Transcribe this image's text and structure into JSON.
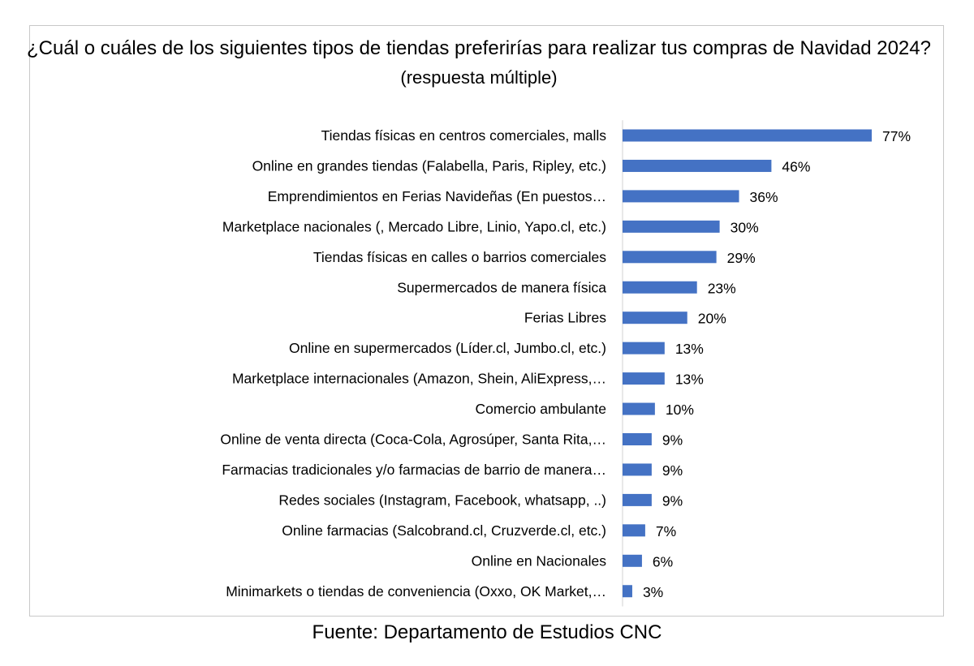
{
  "chart_data": {
    "type": "bar",
    "orientation": "horizontal",
    "title": "¿Cuál o cuáles de los siguientes tipos de tiendas preferirías para realizar tus compras de Navidad 2024?",
    "subtitle": "(respuesta múltiple)",
    "xlim": [
      0,
      100
    ],
    "grid": false,
    "bar_color": "#4472C4",
    "categories": [
      "Tiendas físicas en centros comerciales, malls",
      "Online en grandes tiendas (Falabella, Paris, Ripley, etc.)",
      "Emprendimientos en Ferias Navideñas (En puestos…",
      "Marketplace nacionales (, Mercado Libre, Linio, Yapo.cl, etc.)",
      "Tiendas físicas en calles o barrios comerciales",
      "Supermercados de manera física",
      "Ferias Libres",
      "Online en supermercados (Líder.cl, Jumbo.cl, etc.)",
      "Marketplace internacionales (Amazon, Shein, AliExpress,…",
      "Comercio ambulante",
      "Online de venta directa (Coca-Cola, Agrosúper, Santa Rita,…",
      "Farmacias tradicionales y/o farmacias de barrio de manera…",
      "Redes sociales (Instagram, Facebook, whatsapp, ..)",
      "Online farmacias (Salcobrand.cl, Cruzverde.cl, etc.)",
      "Online en Nacionales",
      "Minimarkets o tiendas de conveniencia (Oxxo, OK Market,…"
    ],
    "values": [
      77,
      46,
      36,
      30,
      29,
      23,
      20,
      13,
      13,
      10,
      9,
      9,
      9,
      7,
      6,
      3
    ],
    "value_labels": [
      "77%",
      "46%",
      "36%",
      "30%",
      "29%",
      "23%",
      "20%",
      "13%",
      "13%",
      "10%",
      "9%",
      "9%",
      "9%",
      "7%",
      "6%",
      "3%"
    ]
  },
  "source": "Fuente: Departamento de Estudios CNC"
}
